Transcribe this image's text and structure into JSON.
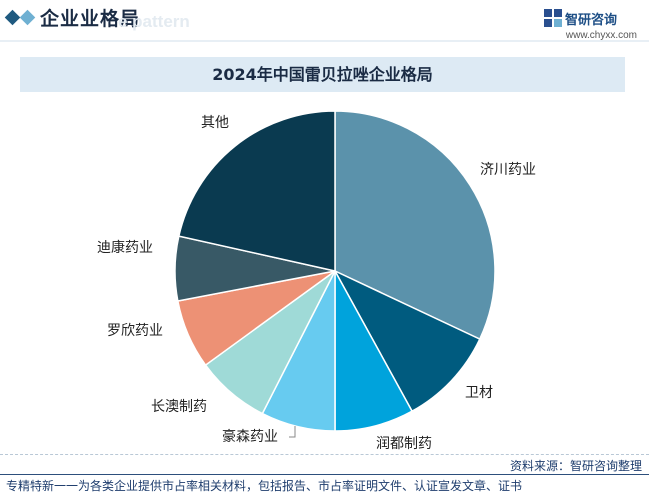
{
  "header": {
    "section_title": "企业业格局",
    "ghost_text": "e pattern",
    "logo_name": "智研咨询",
    "logo_url": "www.chyxx.com"
  },
  "chart_data": {
    "type": "pie",
    "title": "2024年中国雷贝拉唑企业格局",
    "start": "top, clockwise",
    "categories": [
      "济川药业",
      "卫材",
      "润都制药",
      "豪森药业",
      "长澳制药",
      "罗欣药业",
      "迪康药业",
      "其他"
    ],
    "values": [
      32,
      10,
      8,
      7.5,
      7.5,
      7,
      6.5,
      21.5
    ],
    "value_unit": "% (estimated shares)",
    "colors": [
      "#5b92ab",
      "#005b7f",
      "#00a3dc",
      "#67cbf0",
      "#9fdad7",
      "#ed9175",
      "#385966",
      "#0a3a50"
    ]
  },
  "footer": {
    "source": "资料来源：智研咨询整理",
    "tagline": "专精特新一一为各类企业提供市占率相关材料，包括报告、市占率证明文件、认证宣发文章、证书"
  }
}
